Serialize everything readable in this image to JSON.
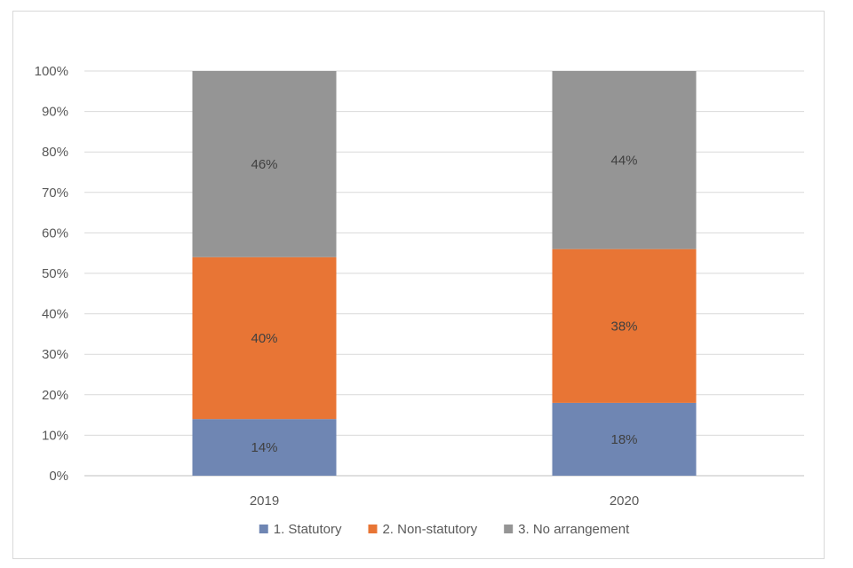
{
  "chart_data": {
    "type": "bar",
    "stacked": true,
    "title": "",
    "xlabel": "",
    "ylabel": "",
    "ylim": [
      0,
      100
    ],
    "y_ticks": [
      "0%",
      "10%",
      "20%",
      "30%",
      "40%",
      "50%",
      "60%",
      "70%",
      "80%",
      "90%",
      "100%"
    ],
    "categories": [
      "2019",
      "2020"
    ],
    "grid": true,
    "legend_position": "bottom",
    "series": [
      {
        "name": "1. Statutory",
        "color": "#6f86b3",
        "values": [
          14,
          18
        ],
        "labels": [
          "14%",
          "18%"
        ]
      },
      {
        "name": "2. Non-statutory",
        "color": "#e87535",
        "values": [
          40,
          38
        ],
        "labels": [
          "40%",
          "38%"
        ]
      },
      {
        "name": "3. No arrangement",
        "color": "#959595",
        "values": [
          46,
          44
        ],
        "labels": [
          "46%",
          "44%"
        ]
      }
    ]
  }
}
